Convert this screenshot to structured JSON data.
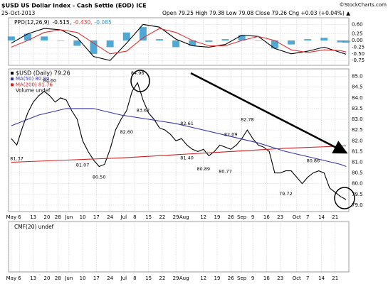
{
  "chart_data": [
    {
      "type": "line",
      "title": "$USD US Dollar Index - Cash Settle (EOD) ICE",
      "subtitle": "25-Oct-2013",
      "quote": "Open 79.25 High 79.38 Low 79.08 Close 79.26 Chg +0.03 (+0.04%) ▲",
      "credit": "©StockCharts.com",
      "legend_label": "PPO(12,26,9)",
      "x": [
        0,
        6,
        12,
        18,
        24,
        30,
        36,
        42,
        48,
        54,
        60,
        66,
        72,
        78,
        84,
        90,
        96,
        102,
        108,
        114,
        120,
        122
      ],
      "series": [
        {
          "name": "-0.515,",
          "color": "#000000",
          "values": [
            -0.1,
            0.25,
            0.45,
            0.4,
            0.1,
            -0.6,
            -0.75,
            -0.1,
            0.6,
            0.5,
            0.05,
            -0.2,
            -0.25,
            -0.15,
            0.2,
            0.15,
            -0.3,
            -0.5,
            -0.4,
            -0.25,
            -0.45,
            -0.515
          ]
        },
        {
          "name": "-0.430,",
          "color": "#dd3333",
          "values": [
            -0.25,
            0.0,
            0.3,
            0.4,
            0.3,
            -0.1,
            -0.5,
            -0.4,
            0.1,
            0.45,
            0.3,
            0.0,
            -0.2,
            -0.2,
            0.0,
            0.15,
            0.0,
            -0.35,
            -0.45,
            -0.35,
            -0.38,
            -0.43
          ]
        },
        {
          "name": "-0.085",
          "color": "#3399cc",
          "type": "bar",
          "values": [
            0.15,
            0.25,
            0.15,
            0.0,
            -0.2,
            -0.5,
            -0.25,
            0.3,
            0.5,
            0.05,
            -0.25,
            -0.2,
            -0.05,
            0.05,
            0.2,
            0.0,
            -0.3,
            -0.15,
            0.05,
            0.1,
            -0.07,
            -0.085
          ]
        }
      ],
      "ylim": [
        -0.93,
        0.85
      ],
      "yticks": [
        {
          "value": 0.6,
          "label": "0.60"
        },
        0.25,
        {
          "value": 0,
          "label": "0.00"
        },
        -0.25,
        {
          "value": -0.5,
          "label": "-0.50"
        },
        -0.75
      ],
      "grid": true
    },
    {
      "type": "line",
      "legend_extra": "Volume undef",
      "x": [
        0,
        2,
        4,
        6,
        8,
        10,
        12,
        14,
        16,
        18,
        20,
        22,
        24,
        26,
        28,
        30,
        32,
        34,
        36,
        38,
        40,
        42,
        44,
        46,
        48,
        50,
        52,
        54,
        56,
        58,
        60,
        62,
        64,
        66,
        68,
        70,
        72,
        74,
        76,
        78,
        80,
        82,
        84,
        86,
        88,
        90,
        92,
        94,
        96,
        98,
        100,
        102,
        104,
        106,
        108,
        110,
        112,
        114,
        116,
        118,
        120,
        122
      ],
      "series": [
        {
          "name": "$USD (Daily) 79.26",
          "color": "#000000",
          "values": [
            82.1,
            81.8,
            82.6,
            83.3,
            83.8,
            84.1,
            84.3,
            84.1,
            83.8,
            84.0,
            83.9,
            83.4,
            83.0,
            82.0,
            81.5,
            81.1,
            80.8,
            80.9,
            81.6,
            82.5,
            83.0,
            83.4,
            84.3,
            84.7,
            83.9,
            83.3,
            83.0,
            82.6,
            82.5,
            82.3,
            82.0,
            82.1,
            81.8,
            81.6,
            81.5,
            81.6,
            81.3,
            81.5,
            81.8,
            81.7,
            81.6,
            81.8,
            82.1,
            82.5,
            82.1,
            81.8,
            81.7,
            81.5,
            80.5,
            80.5,
            80.6,
            80.6,
            80.3,
            80.0,
            80.3,
            80.5,
            80.6,
            80.5,
            79.8,
            79.6,
            79.4,
            79.26
          ]
        },
        {
          "name": "MA(50) 80.80",
          "color": "#3333aa",
          "x": [
            0,
            10,
            20,
            30,
            40,
            50,
            60,
            70,
            80,
            90,
            100,
            110,
            120,
            122
          ],
          "values": [
            82.7,
            83.2,
            83.5,
            83.5,
            83.2,
            83.0,
            82.8,
            82.5,
            82.2,
            81.9,
            81.5,
            81.2,
            80.9,
            80.8
          ]
        },
        {
          "name": "MA(200) 81.76",
          "color": "#cc2222",
          "x": [
            0,
            20,
            40,
            60,
            80,
            100,
            122
          ],
          "values": [
            81.0,
            81.1,
            81.2,
            81.35,
            81.5,
            81.65,
            81.76
          ]
        }
      ],
      "annotations": [
        {
          "value": 84.96,
          "label": "84.96",
          "x": 46
        },
        {
          "value": 84.6,
          "label": "84.60",
          "x": 14
        },
        {
          "value": 83.62,
          "label": "83.62",
          "x": 48
        },
        {
          "value": 82.6,
          "label": "82.60",
          "x": 42
        },
        {
          "value": 82.61,
          "label": "82.61",
          "x": 64
        },
        {
          "value": 82.09,
          "label": "82.09",
          "x": 80
        },
        {
          "value": 82.78,
          "label": "82.78",
          "x": 86
        },
        {
          "value": 81.4,
          "label": "81.40",
          "x": 64
        },
        {
          "value": 80.89,
          "label": "80.89",
          "x": 70
        },
        {
          "value": 80.77,
          "label": "80.77",
          "x": 78
        },
        {
          "value": 81.37,
          "label": "81.37",
          "x": 2
        },
        {
          "value": 81.07,
          "label": "81.07",
          "x": 26
        },
        {
          "value": 80.5,
          "label": "80.50",
          "x": 32
        },
        {
          "value": 80.86,
          "label": "80.86",
          "x": 110
        },
        {
          "value": 79.72,
          "label": "79.72",
          "x": 100
        }
      ],
      "xlim": [
        -1,
        123
      ],
      "xticks": [
        {
          "value": 0,
          "label": "May"
        },
        {
          "value": 3,
          "label": "6"
        },
        {
          "value": 8,
          "label": "13"
        },
        {
          "value": 13,
          "label": "20"
        },
        {
          "value": 17,
          "label": "28"
        },
        {
          "value": 21,
          "label": "Jun"
        },
        {
          "value": 26,
          "label": "10"
        },
        {
          "value": 31,
          "label": "17"
        },
        {
          "value": 36,
          "label": "24"
        },
        {
          "value": 41,
          "label": "Jul"
        },
        {
          "value": 45,
          "label": "8"
        },
        {
          "value": 50,
          "label": "15"
        },
        {
          "value": 55,
          "label": "22"
        },
        {
          "value": 60,
          "label": "29"
        },
        {
          "value": 63,
          "label": "Aug"
        },
        {
          "value": 70,
          "label": "12"
        },
        {
          "value": 75,
          "label": "19"
        },
        {
          "value": 80,
          "label": "26"
        },
        {
          "value": 84,
          "label": "Sep"
        },
        {
          "value": 88,
          "label": "9"
        },
        {
          "value": 93,
          "label": "16"
        },
        {
          "value": 98,
          "label": "23"
        },
        {
          "value": 104,
          "label": "Oct"
        },
        {
          "value": 108,
          "label": "7"
        },
        {
          "value": 113,
          "label": "14"
        },
        {
          "value": 118,
          "label": "21"
        }
      ],
      "ylim": [
        78.7,
        85.35
      ],
      "yticks": [
        {
          "value": 85,
          "label": "85.0"
        },
        84.5,
        {
          "value": 84,
          "label": "84.0"
        },
        83.5,
        {
          "value": 83,
          "label": "83.0"
        },
        82.5,
        {
          "value": 82,
          "label": "82.0"
        },
        81.5,
        {
          "value": 81,
          "label": "81.0"
        },
        80.5,
        {
          "value": 80,
          "label": "80.0"
        },
        79.5,
        {
          "value": 79,
          "label": "79.0"
        }
      ],
      "grid": true
    },
    {
      "type": "line",
      "legend_label": "CMF(20) undef",
      "series": [],
      "grid": true
    }
  ]
}
